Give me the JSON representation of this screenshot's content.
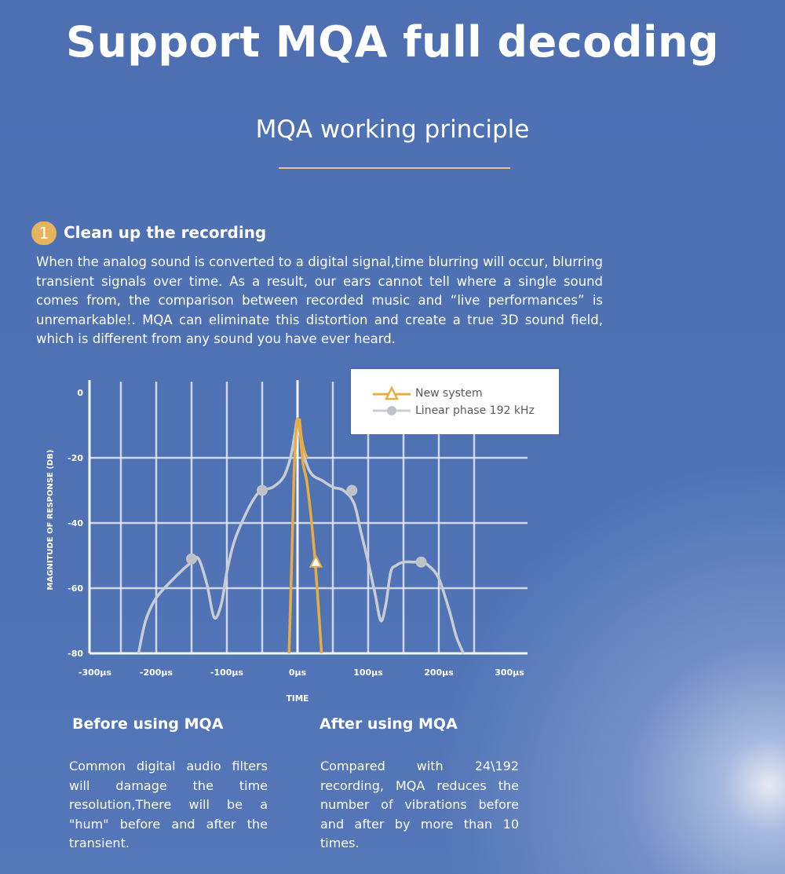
{
  "header": {
    "title": "Support MQA full decoding",
    "subtitle": "MQA working principle"
  },
  "section": {
    "step_number": "1",
    "heading": "Clean up the recording",
    "paragraph": "When the analog sound is converted to a digital signal,time blurring will occur, blurring transient signals over time. As a result, our ears cannot tell where a single sound comes from, the comparison between recorded music and “live performances” is unremarkable!. MQA can eliminate this distortion and create a true 3D sound field, which is different from any sound you have ever heard."
  },
  "chart_data": {
    "type": "line",
    "xlabel": "TIME",
    "ylabel": "MAGNITUDE OF RESPONSE (DB)",
    "x_ticks": [
      "-300μs",
      "-200μs",
      "-100μs",
      "0μs",
      "100μs",
      "200μs",
      "300μs"
    ],
    "y_ticks": [
      "0",
      "-20",
      "-40",
      "-60",
      "-80"
    ],
    "xlim": [
      -300,
      300
    ],
    "ylim": [
      -80,
      0
    ],
    "grid": true,
    "legend_position": "top-right",
    "series": [
      {
        "name": "Linear phase 192 kHz",
        "color": "#c9ccd2",
        "marker": "circle",
        "x": [
          -225,
          -215,
          -200,
          -175,
          -150,
          -140,
          -128,
          -118,
          -108,
          -100,
          -90,
          -75,
          -60,
          -50,
          -35,
          -20,
          -10,
          -4,
          0,
          4,
          10,
          20,
          35,
          50,
          65,
          80,
          90,
          100,
          110,
          118,
          125,
          132,
          140,
          150,
          165,
          175,
          185,
          200,
          215,
          225,
          235
        ],
        "y": [
          -80,
          -70,
          -63,
          -57,
          -52,
          -51,
          -59,
          -69,
          -65,
          -55,
          -46,
          -38,
          -32,
          -30,
          -29,
          -26,
          -20,
          -13,
          -8,
          -13,
          -20,
          -25,
          -27,
          -29,
          -30,
          -34,
          -43,
          -52,
          -62,
          -70,
          -65,
          -55,
          -53,
          -52,
          -52,
          -52,
          -53,
          -57,
          -67,
          -75,
          -80
        ],
        "markers_x": [
          -150,
          -50,
          77,
          175
        ],
        "markers_y": [
          -51,
          -30,
          -30,
          -52
        ]
      },
      {
        "name": "New system",
        "color": "#e8ad42",
        "marker": "triangle",
        "x": [
          -12,
          -8,
          -5,
          -2,
          0,
          2,
          4,
          6,
          8,
          10,
          13,
          16,
          20,
          25,
          30,
          34
        ],
        "y": [
          -80,
          -50,
          -25,
          -12,
          -8,
          -10,
          -13,
          -18,
          -22,
          -24,
          -27,
          -32,
          -40,
          -52,
          -67,
          -80
        ],
        "extra": {
          "x": [
            3,
            6,
            10,
            14
          ],
          "y": [
            -8,
            -14,
            -18,
            -20
          ]
        },
        "markers_x": [
          26
        ],
        "markers_y": [
          -52
        ]
      }
    ]
  },
  "before": {
    "heading": "Before using MQA",
    "text": "Common digital audio filters will damage the time resolution,There will be a \"hum\" before and after the transient."
  },
  "after": {
    "heading": "After using MQA",
    "text": "Compared with 24\\192 recording, MQA reduces the number of vibrations before and after by more than 10 times."
  }
}
